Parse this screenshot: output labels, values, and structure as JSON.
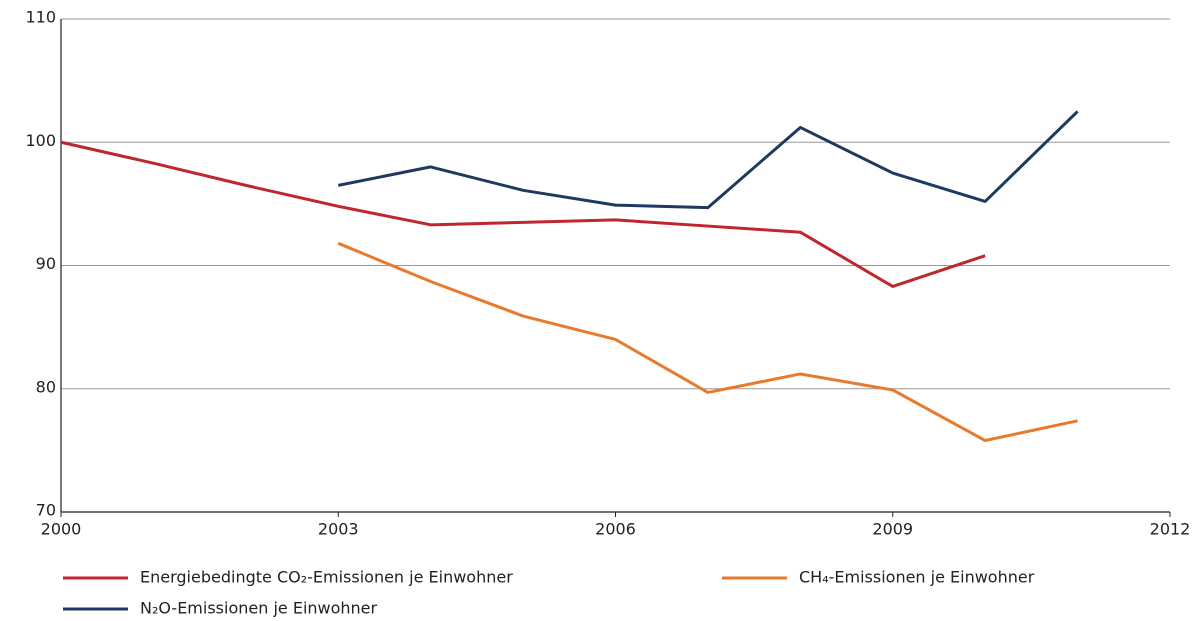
{
  "chart_data": {
    "type": "line",
    "x": [
      2000,
      2001,
      2002,
      2003,
      2004,
      2005,
      2006,
      2007,
      2008,
      2009,
      2010,
      2011
    ],
    "series": [
      {
        "name": "Energiebedingte CO₂-Emissionen je Einwohner",
        "color": "#c0262d",
        "values": [
          100,
          98.3,
          96.5,
          94.8,
          93.3,
          93.5,
          93.7,
          93.2,
          92.7,
          88.3,
          90.8,
          null
        ]
      },
      {
        "name": "CH₄-Emissionen je Einwohner",
        "color": "#e87a2c",
        "values": [
          null,
          null,
          null,
          91.8,
          88.7,
          85.9,
          84.0,
          79.7,
          81.2,
          79.9,
          75.8,
          77.4
        ]
      },
      {
        "name": "N₂O-Emissionen je Einwohner",
        "color": "#1f3a5f",
        "values": [
          null,
          null,
          null,
          96.5,
          98.0,
          96.1,
          94.9,
          94.7,
          101.2,
          97.5,
          95.2,
          102.5
        ]
      }
    ],
    "xlim": [
      2000,
      2012
    ],
    "xticks": [
      2000,
      2003,
      2006,
      2009,
      2012
    ],
    "ylim": [
      70,
      110
    ],
    "yticks": [
      70,
      80,
      90,
      100,
      110
    ],
    "grid": true,
    "legend": "bottom"
  }
}
